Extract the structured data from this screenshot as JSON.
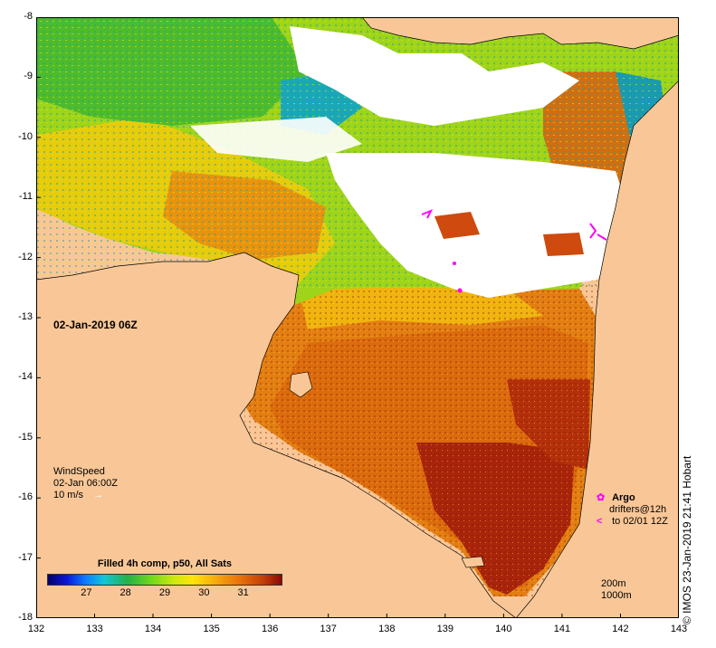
{
  "map": {
    "timestamp_label": "02-Jan-2019 06Z",
    "credit": "© IMOS 23-Jan-2019 21:41 Hobart",
    "x_ticks": [
      "132",
      "133",
      "134",
      "135",
      "136",
      "137",
      "138",
      "139",
      "140",
      "141",
      "142",
      "143"
    ],
    "y_ticks": [
      "-8",
      "-9",
      "-10",
      "-11",
      "-12",
      "-13",
      "-14",
      "-15",
      "-16",
      "-17",
      "-18"
    ],
    "colors": {
      "land": "#f9c797",
      "cloud": "#ffffff",
      "drifter": "#ff00ff"
    }
  },
  "wind": {
    "title": "WindSpeed",
    "time": "02-Jan 06:00Z",
    "scale_label": "10 m/s",
    "arrow_icon": "arrow-right-icon"
  },
  "legend": {
    "title": "Filled 4h comp, p50, All Sats",
    "ticks": [
      "27",
      "28",
      "29",
      "30",
      "31"
    ],
    "tick_values": [
      27,
      28,
      29,
      30,
      31
    ],
    "range": [
      26.0,
      32.0
    ]
  },
  "argo": {
    "title": "Argo",
    "drifters_label": "drifters@12h",
    "to_label": "to 02/01 12Z",
    "argo_icon": "argo-float-icon",
    "drifter_icon": "drifter-track-icon"
  },
  "depth": {
    "contour_200": "200m",
    "contour_1000": "1000m"
  }
}
